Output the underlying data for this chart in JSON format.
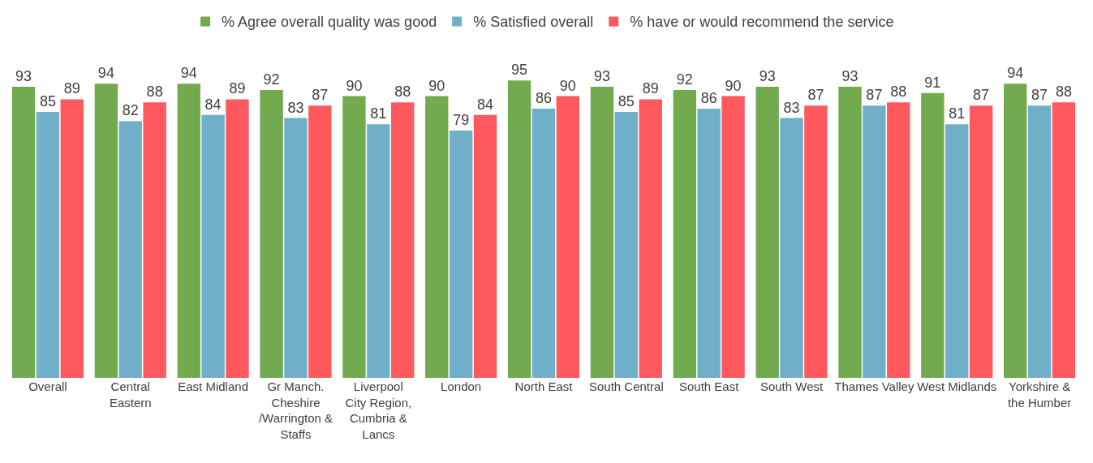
{
  "chart_data": {
    "type": "bar",
    "categories": [
      "Overall",
      "Central Eastern",
      "East Midland",
      "Gr Manch. Cheshire /Warrington & Staffs",
      "Liverpool City Region, Cumbria & Lancs",
      "London",
      "North East",
      "South Central",
      "South East",
      "South West",
      "Thames Valley",
      "West Midlands",
      "Yorkshire & the Humber"
    ],
    "series": [
      {
        "name": "% Agree overall quality was good",
        "color": "#72ab4f",
        "values": [
          93,
          94,
          94,
          92,
          90,
          90,
          95,
          93,
          92,
          93,
          93,
          91,
          94
        ]
      },
      {
        "name": "% Satisfied overall",
        "color": "#6fb0c8",
        "values": [
          85,
          82,
          84,
          83,
          81,
          79,
          86,
          85,
          86,
          83,
          87,
          81,
          87
        ]
      },
      {
        "name": "% have or would recommend the service",
        "color": "#ff585d",
        "values": [
          89,
          88,
          89,
          87,
          88,
          84,
          90,
          89,
          90,
          87,
          88,
          87,
          88
        ]
      }
    ],
    "data_labels": true,
    "legend": "top",
    "tick_labels": "x"
  }
}
